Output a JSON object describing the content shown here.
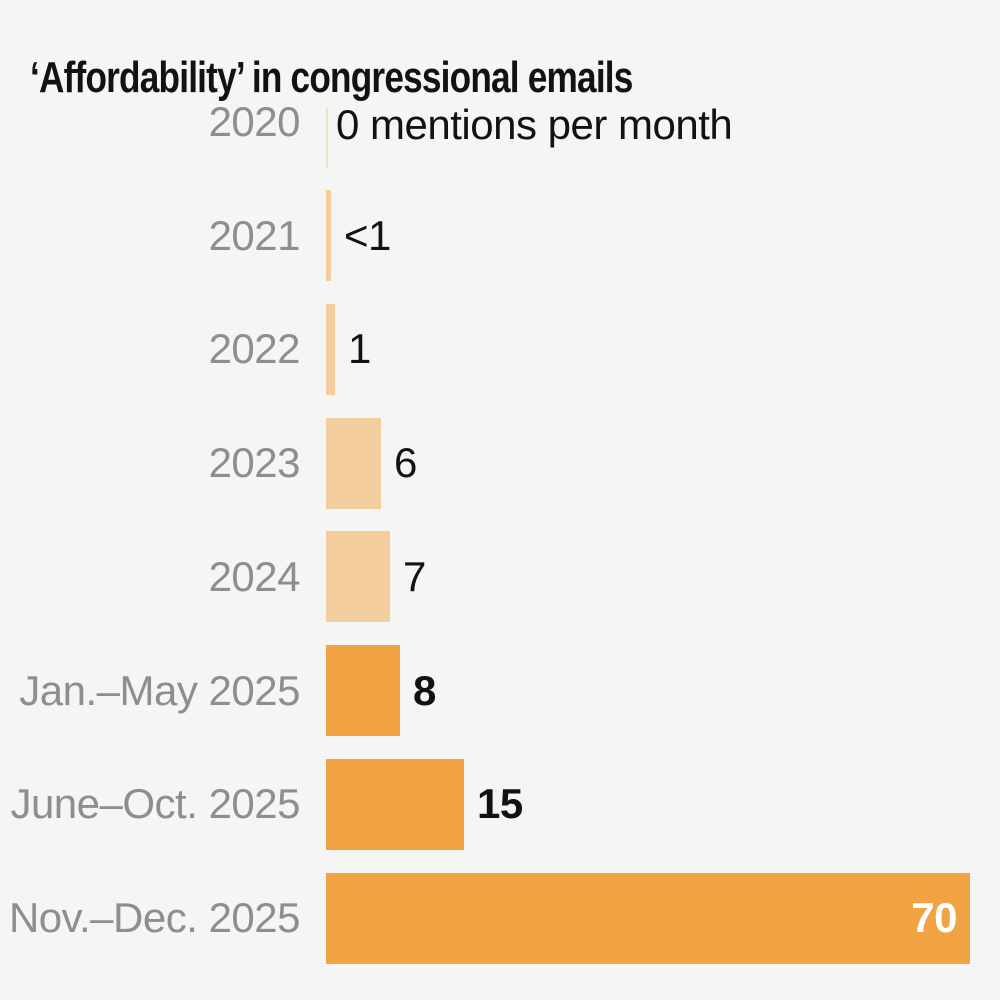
{
  "title": "‘Affordability’ in congressional emails",
  "style": {
    "background": "#f5f5f4",
    "title_color": "#121212",
    "category_label_color": "#8e8e8e",
    "value_label_color": "#121212",
    "value_label_inside_color": "#ffffff",
    "bar_color_light": "#f4cd9d",
    "bar_color_dark": "#f2a343",
    "zero_tick_color": "#ece1cd"
  },
  "chart_data": {
    "type": "bar",
    "orientation": "horizontal",
    "title": "‘Affordability’ in congressional emails",
    "unit": "mentions per month",
    "xlim": [
      0,
      70
    ],
    "grid": false,
    "legend": false,
    "categories": [
      "2020",
      "2021",
      "2022",
      "2023",
      "2024",
      "Jan.–May 2025",
      "June–Oct. 2025",
      "Nov.–Dec. 2025"
    ],
    "values": [
      0,
      0.5,
      1,
      6,
      7,
      8,
      15,
      70
    ],
    "value_labels": [
      "0 mentions per month",
      "<1",
      "1",
      "6",
      "7",
      "8",
      "15",
      "70"
    ],
    "rows": [
      {
        "category": "2020",
        "value": 0,
        "display": "0 mentions per month",
        "shade": "none",
        "bold": false,
        "label_inside": false
      },
      {
        "category": "2021",
        "value": 0.5,
        "display": "<1",
        "shade": "light",
        "bold": false,
        "label_inside": false
      },
      {
        "category": "2022",
        "value": 1,
        "display": "1",
        "shade": "light",
        "bold": false,
        "label_inside": false
      },
      {
        "category": "2023",
        "value": 6,
        "display": "6",
        "shade": "light",
        "bold": false,
        "label_inside": false
      },
      {
        "category": "2024",
        "value": 7,
        "display": "7",
        "shade": "light",
        "bold": false,
        "label_inside": false
      },
      {
        "category": "Jan.–May 2025",
        "value": 8,
        "display": "8",
        "shade": "dark",
        "bold": true,
        "label_inside": false
      },
      {
        "category": "June–Oct. 2025",
        "value": 15,
        "display": "15",
        "shade": "dark",
        "bold": true,
        "label_inside": false
      },
      {
        "category": "Nov.–Dec. 2025",
        "value": 70,
        "display": "70",
        "shade": "dark",
        "bold": true,
        "label_inside": true
      }
    ]
  }
}
